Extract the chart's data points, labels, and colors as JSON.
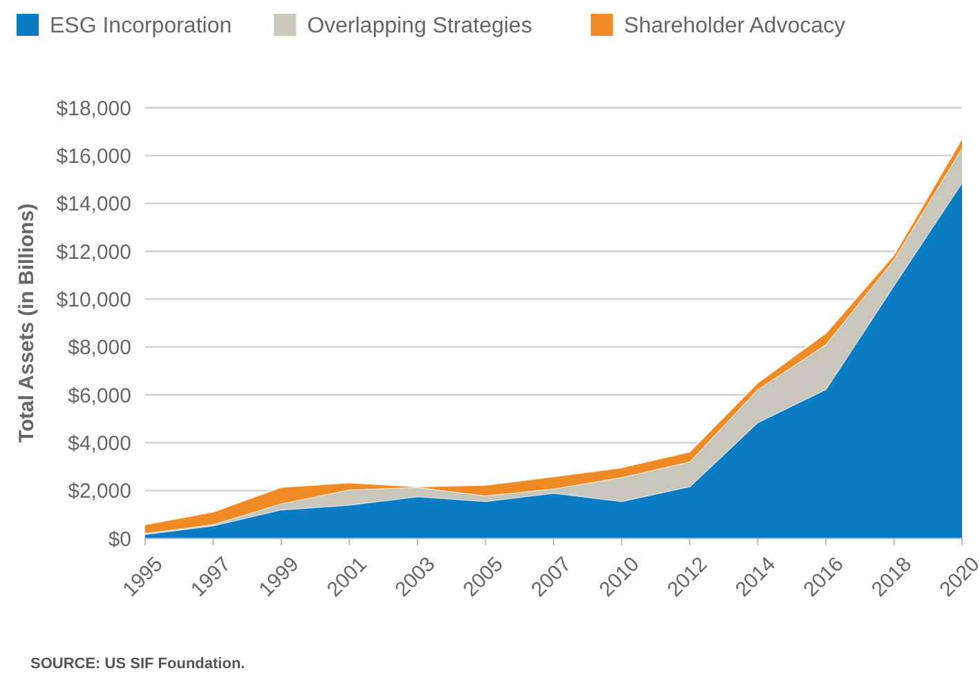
{
  "chart_data": {
    "type": "area",
    "stacked": true,
    "ylabel": "Total Assets (in Billions)",
    "categories": [
      "1995",
      "1997",
      "1999",
      "2001",
      "2003",
      "2005",
      "2007",
      "2010",
      "2012",
      "2014",
      "2016",
      "2018",
      "2020"
    ],
    "series": [
      {
        "name": "ESG Incorporation",
        "color": "#0a7cc4",
        "values": [
          170,
          530,
          1200,
          1400,
          1750,
          1550,
          1900,
          1550,
          2170,
          4850,
          6230,
          10570,
          14870
        ]
      },
      {
        "name": "Overlapping Strategies",
        "color": "#c9c6bc",
        "values": [
          50,
          60,
          260,
          640,
          390,
          240,
          180,
          1000,
          1040,
          1380,
          1880,
          1090,
          1450
        ]
      },
      {
        "name": "Shareholder Advocacy",
        "color": "#f08a24",
        "values": [
          360,
          520,
          680,
          290,
          20,
          440,
          500,
          410,
          410,
          280,
          470,
          190,
          400
        ]
      }
    ],
    "ylim": [
      0,
      18000
    ],
    "yticks": [
      {
        "value": 0,
        "label": "$0"
      },
      {
        "value": 2000,
        "label": "$2,000"
      },
      {
        "value": 4000,
        "label": "$4,000"
      },
      {
        "value": 6000,
        "label": "$6,000"
      },
      {
        "value": 8000,
        "label": "$8,000"
      },
      {
        "value": 10000,
        "label": "$10,000"
      },
      {
        "value": 12000,
        "label": "$12,000"
      },
      {
        "value": 14000,
        "label": "$14,000"
      },
      {
        "value": 16000,
        "label": "$16,000"
      },
      {
        "value": 18000,
        "label": "$18,000"
      }
    ],
    "grid": "y",
    "legend": "top",
    "annotations": [
      "SOURCE: US SIF Foundation."
    ]
  }
}
